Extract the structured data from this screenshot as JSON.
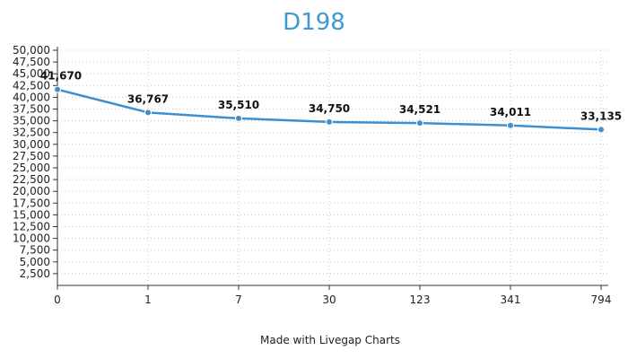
{
  "chart_data": {
    "type": "line",
    "title": "D198",
    "categories": [
      "0",
      "1",
      "7",
      "30",
      "123",
      "341",
      "794"
    ],
    "series": [
      {
        "values": [
          41670,
          36767,
          35510,
          34750,
          34521,
          34011,
          33135
        ]
      }
    ],
    "data_labels": [
      "41,670",
      "36,767",
      "35,510",
      "34,750",
      "34,521",
      "34,011",
      "33,135"
    ],
    "y_ticks": [
      "2,500",
      "5,000",
      "7,500",
      "10,000",
      "12,500",
      "15,000",
      "17,500",
      "20,000",
      "22,500",
      "25,000",
      "27,500",
      "30,000",
      "32,500",
      "35,000",
      "37,500",
      "40,000",
      "42,500",
      "45,000",
      "47,500",
      "50,000"
    ],
    "ylim": [
      0,
      50000
    ],
    "grid": "dotted",
    "xlabel": "",
    "ylabel": "",
    "colors": {
      "line": "#3d8fcf",
      "title": "#3d9ad1"
    }
  },
  "footer": {
    "credit": "Made with Livegap Charts"
  }
}
